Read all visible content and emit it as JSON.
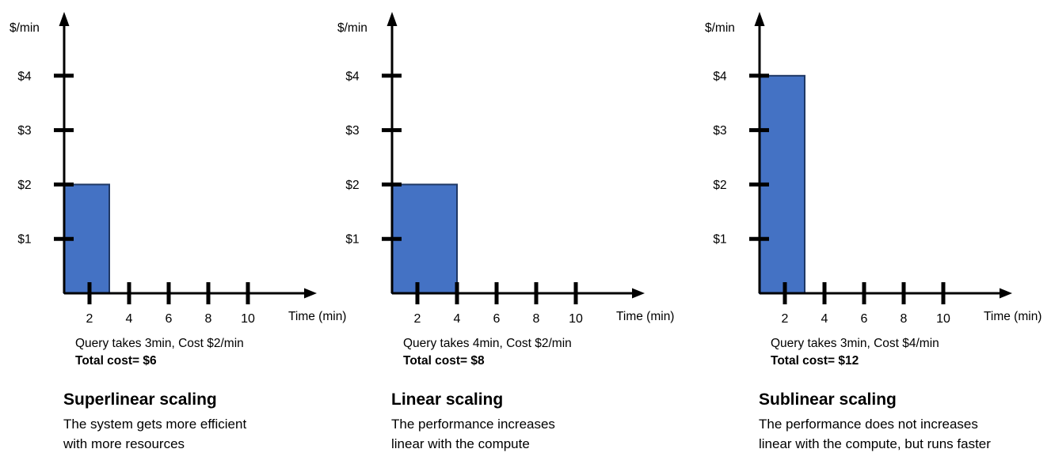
{
  "colors": {
    "background": "#FFFFFF",
    "bar_fill": "#4472C4",
    "bar_border": "#1F3864",
    "axis": "#000000",
    "text": "#000000"
  },
  "chart_data": [
    {
      "type": "bar",
      "title": "Superlinear scaling",
      "description": "The system gets more efficient\nwith more resources",
      "caption": "Query takes 3min, Cost $2/min",
      "total_label": "Total cost= $6",
      "query_minutes": 3,
      "cost_per_min": 2,
      "total_cost": 6,
      "ylabel": "$/min",
      "xlabel": "Time (min)",
      "y_tick_labels": [
        "$4",
        "$3",
        "$2",
        "$1"
      ],
      "y_tick_values": [
        4,
        3,
        2,
        1
      ],
      "x_tick_labels": [
        "2",
        "4",
        "6",
        "8",
        "10"
      ],
      "x_tick_values": [
        2,
        4,
        6,
        8,
        10
      ],
      "xlim": [
        0,
        12.5
      ],
      "ylim": [
        0,
        5
      ],
      "bar": {
        "x_start": 0,
        "x_end": 3,
        "height_dollars": 2
      }
    },
    {
      "type": "bar",
      "title": "Linear scaling",
      "description": "The performance increases\nlinear with the compute",
      "caption": "Query takes 4min, Cost $2/min",
      "total_label": "Total cost= $8",
      "query_minutes": 4,
      "cost_per_min": 2,
      "total_cost": 8,
      "ylabel": "$/min",
      "xlabel": "Time (min)",
      "y_tick_labels": [
        "$4",
        "$3",
        "$2",
        "$1"
      ],
      "y_tick_values": [
        4,
        3,
        2,
        1
      ],
      "x_tick_labels": [
        "2",
        "4",
        "6",
        "8",
        "10"
      ],
      "x_tick_values": [
        2,
        4,
        6,
        8,
        10
      ],
      "xlim": [
        0,
        12.5
      ],
      "ylim": [
        0,
        5
      ],
      "bar": {
        "x_start": 0,
        "x_end": 4,
        "height_dollars": 2
      }
    },
    {
      "type": "bar",
      "title": "Sublinear scaling",
      "description": "The performance does not increases\nlinear with the compute, but runs faster",
      "caption": "Query takes 3min, Cost $4/min",
      "total_label": "Total cost= $12",
      "query_minutes": 3,
      "cost_per_min": 4,
      "total_cost": 12,
      "ylabel": "$/min",
      "xlabel": "Time (min)",
      "y_tick_labels": [
        "$4",
        "$3",
        "$2",
        "$1"
      ],
      "y_tick_values": [
        4,
        3,
        2,
        1
      ],
      "x_tick_labels": [
        "2",
        "4",
        "6",
        "8",
        "10"
      ],
      "x_tick_values": [
        2,
        4,
        6,
        8,
        10
      ],
      "xlim": [
        0,
        12.5
      ],
      "ylim": [
        0,
        5
      ],
      "bar": {
        "x_start": 0,
        "x_end": 3,
        "height_dollars": 4
      }
    }
  ]
}
